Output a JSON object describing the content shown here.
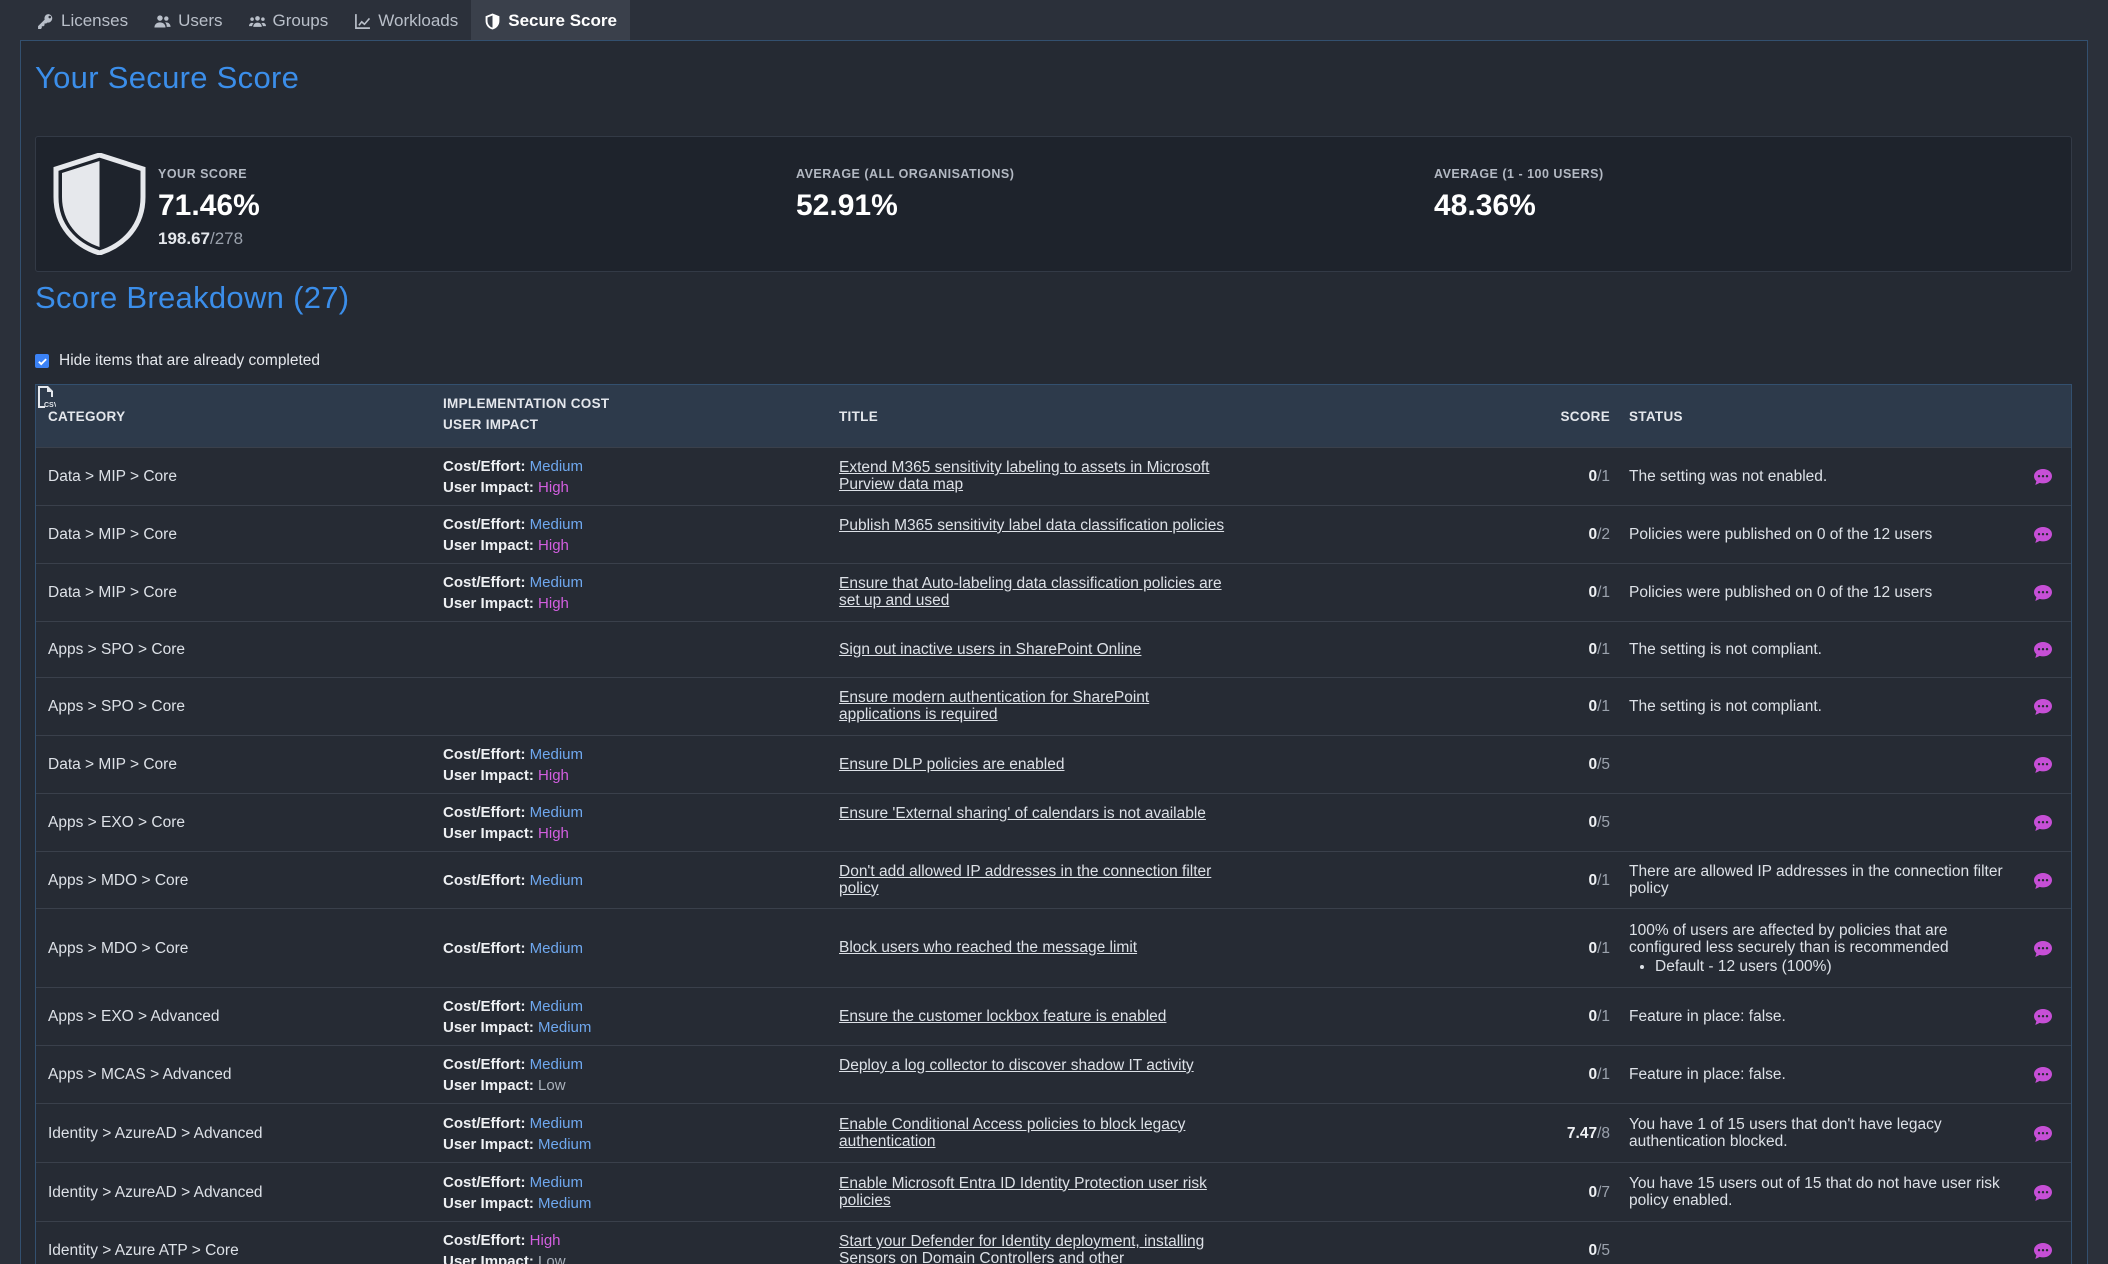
{
  "tabs": [
    {
      "label": "Licenses",
      "icon": "key-icon"
    },
    {
      "label": "Users",
      "icon": "users-icon"
    },
    {
      "label": "Groups",
      "icon": "groups-icon"
    },
    {
      "label": "Workloads",
      "icon": "chart-line-icon"
    },
    {
      "label": "Secure Score",
      "icon": "shield-icon"
    }
  ],
  "page_title": "Your Secure Score",
  "score": {
    "your_label": "YOUR SCORE",
    "your_value": "71.46%",
    "points": "198.67",
    "max_points": "/278",
    "avg_all_label": "AVERAGE (ALL ORGANISATIONS)",
    "avg_all_value": "52.91%",
    "avg_small_label": "AVERAGE (1 - 100 USERS)",
    "avg_small_value": "48.36%"
  },
  "breakdown_title": "Score Breakdown (27)",
  "hide_completed_label": "Hide items that are already completed",
  "columns": {
    "category": "CATEGORY",
    "impl_cost": "IMPLEMENTATION COST",
    "user_impact": "USER IMPACT",
    "title": "TITLE",
    "score": "SCORE",
    "status": "STATUS",
    "export_icon": "csv-export-icon"
  },
  "labels": {
    "cost": "Cost/Effort:",
    "impact": "User Impact:"
  },
  "colors": {
    "accent": "#3b8eea",
    "medium": "#6fa8ef",
    "high": "#d35fe0",
    "low": "#aab1bb",
    "comment_icon": "#c64fd6"
  },
  "rows": [
    {
      "category": "Data > MIP > Core",
      "cost": "Medium",
      "impact": "High",
      "title": "Extend M365 sensitivity labeling to assets in Microsoft Purview data map",
      "score": "0",
      "max": "/1",
      "status": "The setting was not enabled."
    },
    {
      "category": "Data > MIP > Core",
      "cost": "Medium",
      "impact": "High",
      "title": "Publish M365 sensitivity label data classification policies",
      "score": "0",
      "max": "/2",
      "status": "Policies were published on 0 of the 12 users"
    },
    {
      "category": "Data > MIP > Core",
      "cost": "Medium",
      "impact": "High",
      "title": "Ensure that Auto-labeling data classification policies are set up and used",
      "score": "0",
      "max": "/1",
      "status": "Policies were published on 0 of the 12 users"
    },
    {
      "category": "Apps > SPO > Core",
      "cost": "",
      "impact": "",
      "title": "Sign out inactive users in SharePoint Online",
      "score": "0",
      "max": "/1",
      "status": "The setting is not compliant."
    },
    {
      "category": "Apps > SPO > Core",
      "cost": "",
      "impact": "",
      "title": "Ensure modern authentication for SharePoint applications is required",
      "score": "0",
      "max": "/1",
      "status": "The setting is not compliant."
    },
    {
      "category": "Data > MIP > Core",
      "cost": "Medium",
      "impact": "High",
      "title": "Ensure DLP policies are enabled",
      "score": "0",
      "max": "/5",
      "status": ""
    },
    {
      "category": "Apps > EXO > Core",
      "cost": "Medium",
      "impact": "High",
      "title": "Ensure 'External sharing' of calendars is not available",
      "score": "0",
      "max": "/5",
      "status": ""
    },
    {
      "category": "Apps > MDO > Core",
      "cost": "Medium",
      "impact": "",
      "title": "Don't add allowed IP addresses in the connection filter policy",
      "score": "0",
      "max": "/1",
      "status": "There are allowed IP addresses in the connection filter policy"
    },
    {
      "category": "Apps > MDO > Core",
      "cost": "Medium",
      "impact": "",
      "title": "Block users who reached the message limit",
      "score": "0",
      "max": "/1",
      "status": "100% of users are affected by policies that are configured less securely than is recommended",
      "status_items": [
        "Default - 12 users (100%)"
      ]
    },
    {
      "category": "Apps > EXO > Advanced",
      "cost": "Medium",
      "impact": "Medium",
      "title": "Ensure the customer lockbox feature is enabled",
      "score": "0",
      "max": "/1",
      "status": "Feature in place: false."
    },
    {
      "category": "Apps > MCAS > Advanced",
      "cost": "Medium",
      "impact": "Low",
      "title": "Deploy a log collector to discover shadow IT activity",
      "score": "0",
      "max": "/1",
      "status": "Feature in place: false."
    },
    {
      "category": "Identity > AzureAD > Advanced",
      "cost": "Medium",
      "impact": "Medium",
      "title": "Enable Conditional Access policies to block legacy authentication",
      "score": "7.47",
      "max": "/8",
      "status": "You have 1 of 15 users that don't have legacy authentication blocked."
    },
    {
      "category": "Identity > AzureAD > Advanced",
      "cost": "Medium",
      "impact": "Medium",
      "title": "Enable Microsoft Entra ID Identity Protection user risk policies",
      "score": "0",
      "max": "/7",
      "status": "You have 15 users out of 15 that do not have user risk policy enabled."
    },
    {
      "category": "Identity > Azure ATP > Core",
      "cost": "High",
      "impact": "Low",
      "title": "Start your Defender for Identity deployment, installing Sensors on Domain Controllers and other",
      "score": "0",
      "max": "/5",
      "status": ""
    }
  ]
}
